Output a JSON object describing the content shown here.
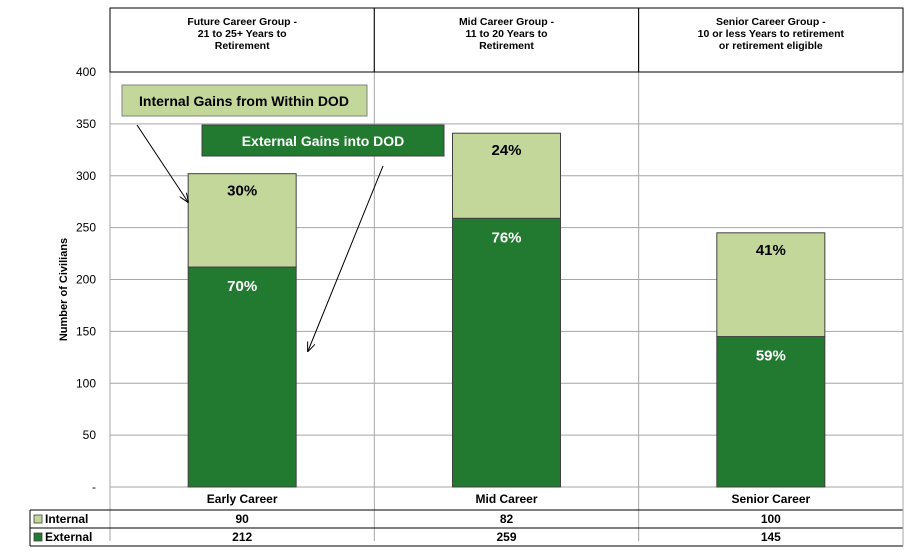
{
  "chart_data": {
    "type": "bar",
    "stacked": true,
    "ylabel": "Number of Civilians",
    "ylim": [
      0,
      400
    ],
    "yticks": [
      "-",
      "50",
      "100",
      "150",
      "200",
      "250",
      "300",
      "350",
      "400"
    ],
    "grid": true,
    "groups": [
      {
        "title_lines": [
          "Future Career Group -",
          "21 to 25+ Years to",
          "Retirement"
        ]
      },
      {
        "title_lines": [
          "Mid Career Group -",
          "11 to 20 Years to",
          "Retirement"
        ]
      },
      {
        "title_lines": [
          "Senior Career Group -",
          "10 or less Years to retirement",
          "or retirement eligible"
        ]
      }
    ],
    "categories": [
      "Early Career",
      "Mid Career",
      "Senior Career"
    ],
    "series": [
      {
        "name": "Internal",
        "color": "#c4d79b",
        "values": [
          90,
          82,
          100
        ],
        "percent_labels": [
          "30%",
          "24%",
          "41%"
        ]
      },
      {
        "name": "External",
        "color": "#217a2f",
        "values": [
          212,
          259,
          145
        ],
        "percent_labels": [
          "70%",
          "76%",
          "59%"
        ]
      }
    ],
    "annotations": [
      {
        "text": "Internal Gains from Within DOD",
        "fill": "#c4d79b"
      },
      {
        "text": "External Gains into DOD",
        "fill": "#217a2f"
      }
    ]
  }
}
